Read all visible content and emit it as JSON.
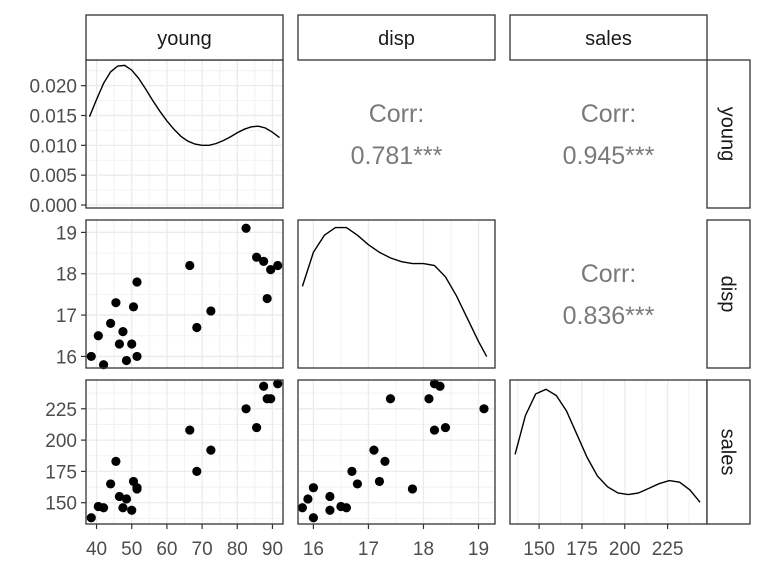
{
  "chart_data": {
    "type": "scatter",
    "title": "",
    "variables": [
      "young",
      "disp",
      "sales"
    ],
    "corr_label": "Corr:",
    "correlations": [
      {
        "row": "young",
        "col": "disp",
        "value": "0.781***"
      },
      {
        "row": "young",
        "col": "sales",
        "value": "0.945***"
      },
      {
        "row": "disp",
        "col": "sales",
        "value": "0.836***"
      }
    ],
    "ranges": {
      "young": [
        37,
        93
      ],
      "disp": [
        15.72,
        19.3
      ],
      "sales": [
        133,
        248
      ]
    },
    "ticks": {
      "young": [
        40,
        50,
        60,
        70,
        80,
        90
      ],
      "disp": [
        16,
        17,
        18,
        19
      ],
      "sales": [
        150,
        175,
        200,
        225
      ]
    },
    "tick_labels": {
      "young": [
        "40",
        "50",
        "60",
        "70",
        "80",
        "90"
      ],
      "disp": [
        "16",
        "17",
        "18",
        "19"
      ],
      "sales": [
        "150",
        "175",
        "200",
        "225"
      ]
    },
    "density_axis": {
      "range": [
        -0.0005,
        0.0243
      ],
      "ticks": [
        0,
        0.005,
        0.01,
        0.015,
        0.02
      ],
      "tick_labels": [
        "0.000",
        "0.005",
        "0.010",
        "0.015",
        "0.020"
      ]
    },
    "points": [
      {
        "young": 38.5,
        "disp": 16.0,
        "sales": 138
      },
      {
        "young": 40.5,
        "disp": 16.5,
        "sales": 147
      },
      {
        "young": 42.0,
        "disp": 15.8,
        "sales": 146
      },
      {
        "young": 44.0,
        "disp": 16.8,
        "sales": 165
      },
      {
        "young": 45.5,
        "disp": 17.3,
        "sales": 183
      },
      {
        "young": 46.5,
        "disp": 16.3,
        "sales": 155
      },
      {
        "young": 47.5,
        "disp": 16.6,
        "sales": 146
      },
      {
        "young": 48.5,
        "disp": 15.9,
        "sales": 153
      },
      {
        "young": 50.0,
        "disp": 16.3,
        "sales": 144
      },
      {
        "young": 50.5,
        "disp": 17.2,
        "sales": 167
      },
      {
        "young": 51.5,
        "disp": 16.0,
        "sales": 162
      },
      {
        "young": 51.5,
        "disp": 17.8,
        "sales": 161
      },
      {
        "young": 66.5,
        "disp": 18.2,
        "sales": 208
      },
      {
        "young": 68.5,
        "disp": 16.7,
        "sales": 175
      },
      {
        "young": 72.5,
        "disp": 17.1,
        "sales": 192
      },
      {
        "young": 82.5,
        "disp": 19.1,
        "sales": 225
      },
      {
        "young": 85.5,
        "disp": 18.4,
        "sales": 210
      },
      {
        "young": 87.5,
        "disp": 18.3,
        "sales": 243
      },
      {
        "young": 88.5,
        "disp": 17.4,
        "sales": 233
      },
      {
        "young": 89.5,
        "disp": 18.1,
        "sales": 233
      },
      {
        "young": 91.5,
        "disp": 18.2,
        "sales": 245
      }
    ],
    "densities": {
      "young": {
        "x": [
          38,
          40,
          42,
          44,
          46,
          48,
          50,
          52,
          54,
          56,
          58,
          60,
          62,
          64,
          66,
          68,
          70,
          72,
          74,
          76,
          78,
          80,
          82,
          84,
          86,
          88,
          90,
          92
        ],
        "y": [
          0.0148,
          0.0177,
          0.0204,
          0.0223,
          0.0233,
          0.0234,
          0.0226,
          0.0212,
          0.0194,
          0.0175,
          0.0157,
          0.0141,
          0.0127,
          0.0115,
          0.0107,
          0.0102,
          0.01,
          0.01,
          0.0103,
          0.0108,
          0.0114,
          0.0121,
          0.0127,
          0.0131,
          0.0132,
          0.0129,
          0.0122,
          0.0113
        ]
      },
      "disp": {
        "x": [
          15.8,
          16.0,
          16.2,
          16.4,
          16.6,
          16.8,
          17.0,
          17.2,
          17.4,
          17.6,
          17.8,
          18.0,
          18.2,
          18.4,
          18.6,
          18.8,
          19.0,
          19.15
        ],
        "y": [
          0.55,
          0.73,
          0.82,
          0.86,
          0.86,
          0.82,
          0.77,
          0.73,
          0.7,
          0.68,
          0.67,
          0.67,
          0.66,
          0.6,
          0.5,
          0.38,
          0.26,
          0.18
        ]
      },
      "sales": {
        "x": [
          136,
          142,
          148,
          154,
          160,
          166,
          172,
          178,
          184,
          190,
          196,
          202,
          208,
          214,
          220,
          226,
          232,
          238,
          244
        ],
        "y": [
          0.0117,
          0.0142,
          0.0156,
          0.0159,
          0.0155,
          0.0145,
          0.013,
          0.0115,
          0.0103,
          0.0096,
          0.0092,
          0.0091,
          0.0092,
          0.0095,
          0.0098,
          0.01,
          0.0099,
          0.0094,
          0.0086
        ]
      }
    },
    "density_ranges": {
      "disp": [
        0.12,
        0.9
      ],
      "sales": [
        0.0072,
        0.0165
      ]
    },
    "grid": true,
    "legend": "none"
  }
}
